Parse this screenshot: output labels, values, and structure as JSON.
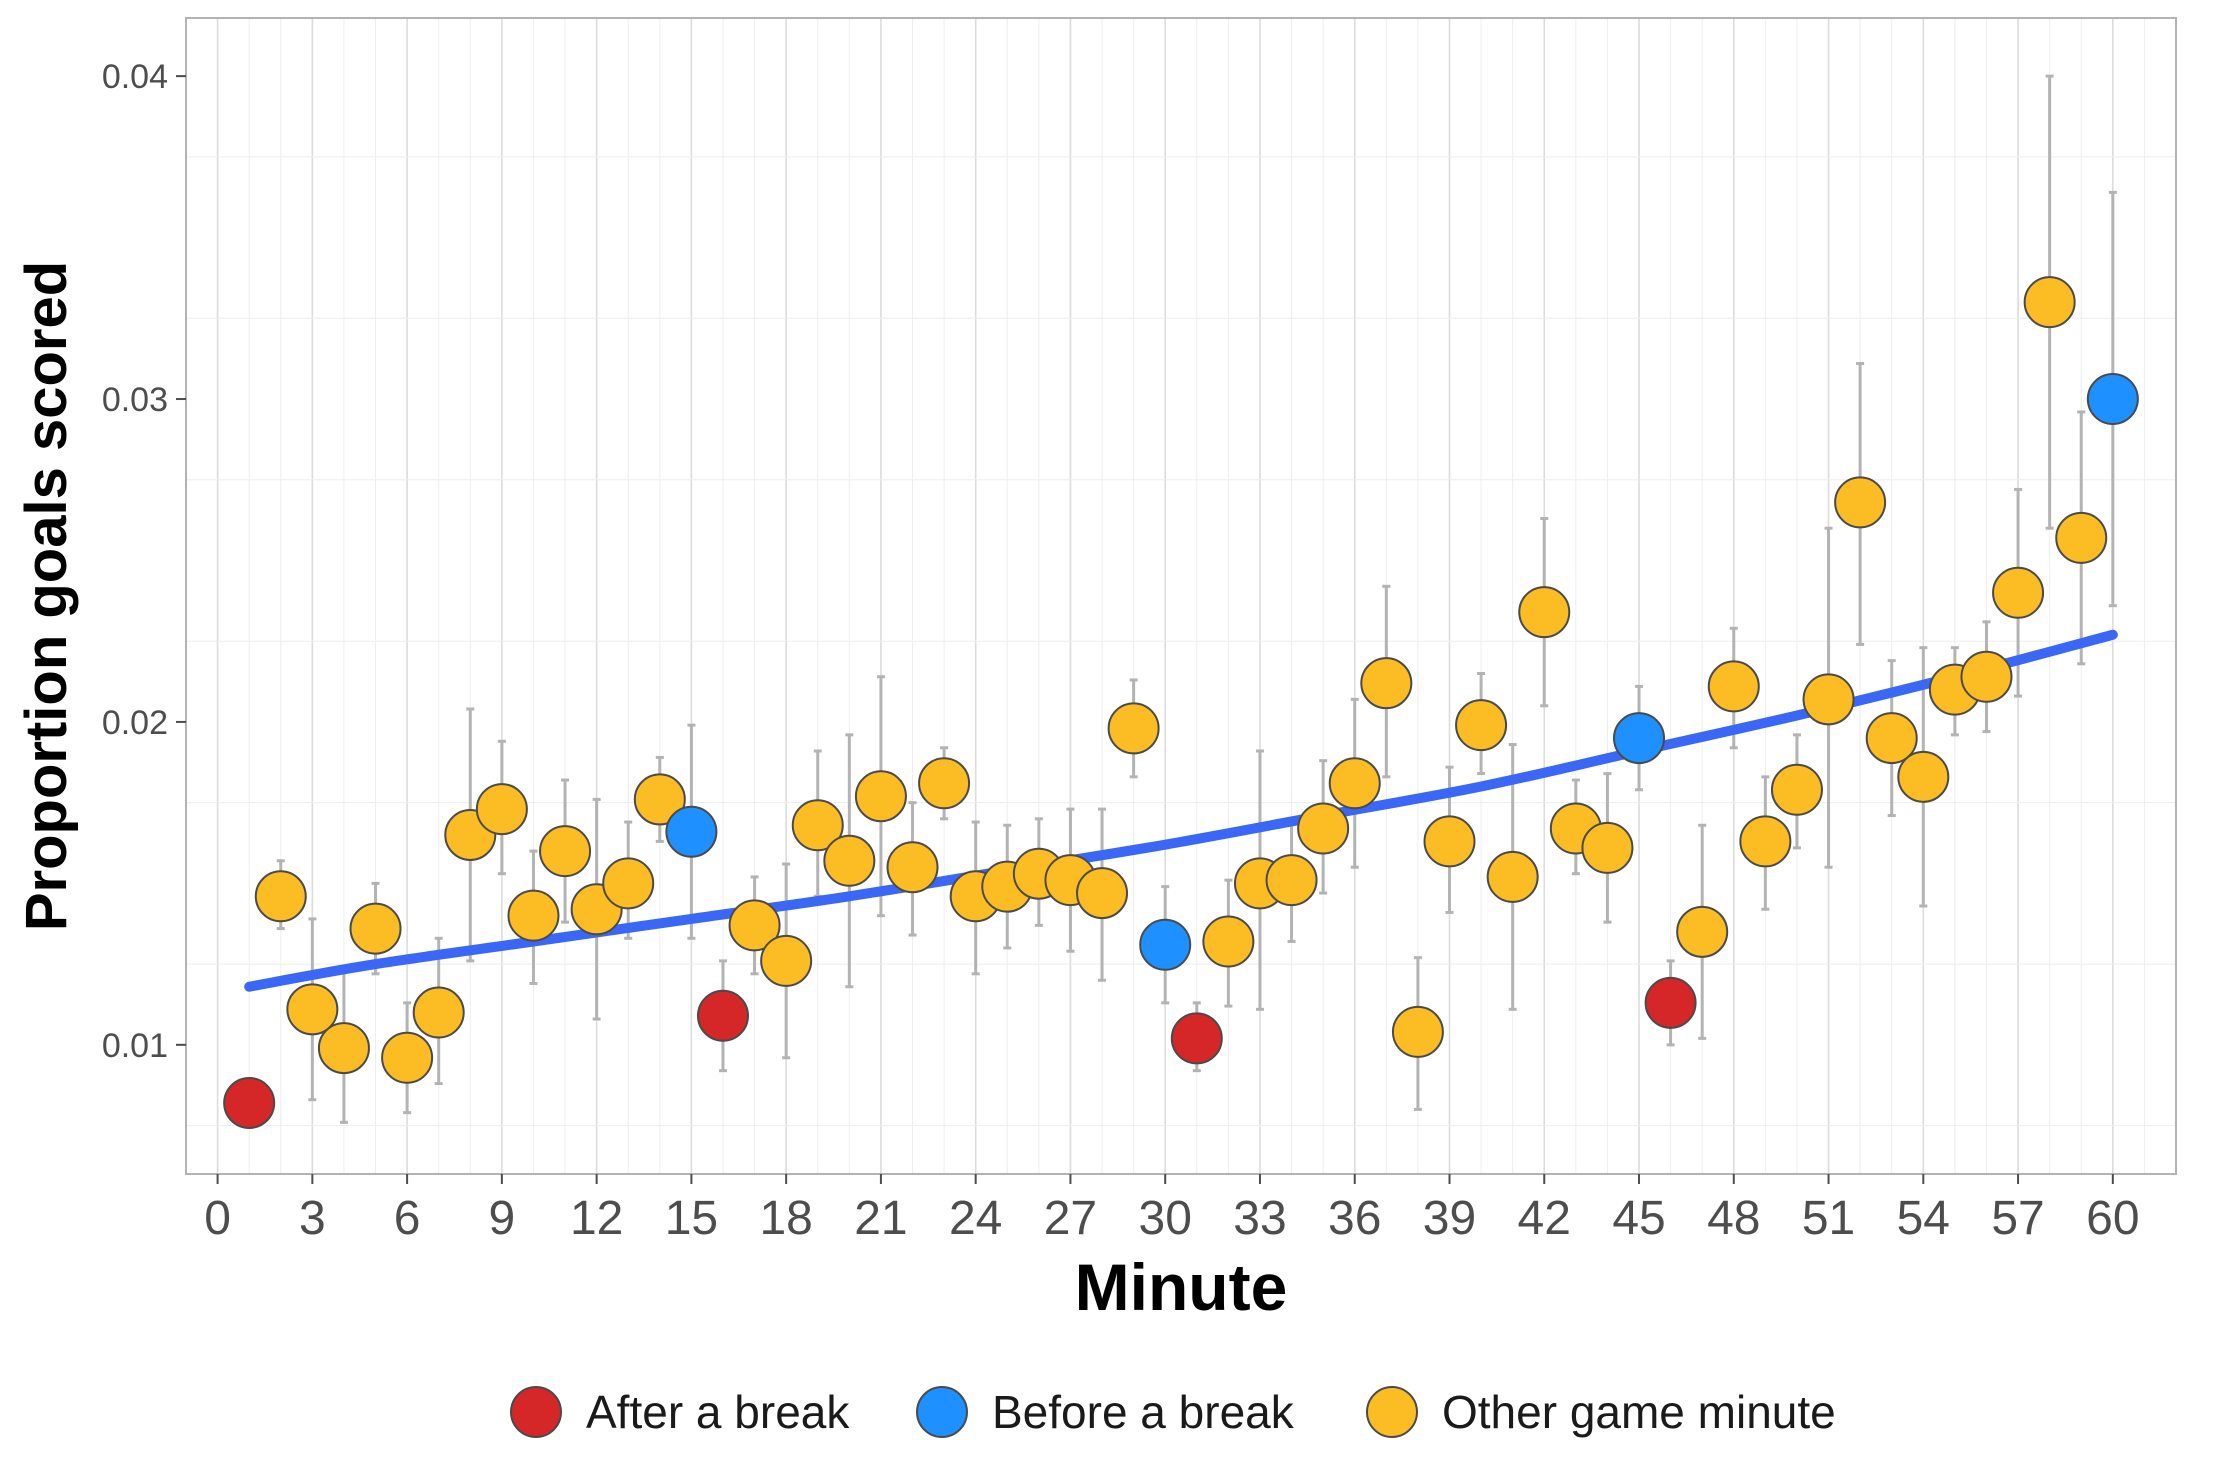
{
  "chart_data": {
    "type": "scatter",
    "xlabel": "Minute",
    "ylabel": "Proportion goals scored",
    "xlim": [
      -1,
      62
    ],
    "ylim": [
      0.006,
      0.0418
    ],
    "x_ticks": [
      0,
      3,
      6,
      9,
      12,
      15,
      18,
      21,
      24,
      27,
      30,
      33,
      36,
      39,
      42,
      45,
      48,
      51,
      54,
      57,
      60
    ],
    "y_ticks": [
      0.01,
      0.02,
      0.03,
      0.04
    ],
    "y_tick_labels": [
      "0.01",
      "0.02",
      "0.03",
      "0.04"
    ],
    "grid": true,
    "legend_position": "bottom",
    "colors": {
      "after": "#d62728",
      "before": "#1e90ff",
      "other": "#fbbd23",
      "trend": "#3a67f5",
      "errorbar": "#b3b3b3",
      "point_outline": "#4a4a4a"
    },
    "legend": [
      {
        "key": "after",
        "label": "After a break"
      },
      {
        "key": "before",
        "label": "Before a break"
      },
      {
        "key": "other",
        "label": "Other game minute"
      }
    ],
    "points": [
      {
        "x": 1,
        "y": 0.0082,
        "lo": null,
        "hi": null,
        "group": "after"
      },
      {
        "x": 2,
        "y": 0.0146,
        "lo": 0.0136,
        "hi": 0.0157,
        "group": "other"
      },
      {
        "x": 3,
        "y": 0.0111,
        "lo": 0.0083,
        "hi": 0.0139,
        "group": "other"
      },
      {
        "x": 4,
        "y": 0.0099,
        "lo": 0.0076,
        "hi": 0.0123,
        "group": "other"
      },
      {
        "x": 5,
        "y": 0.0136,
        "lo": 0.0122,
        "hi": 0.015,
        "group": "other"
      },
      {
        "x": 6,
        "y": 0.0096,
        "lo": 0.0079,
        "hi": 0.0113,
        "group": "other"
      },
      {
        "x": 7,
        "y": 0.011,
        "lo": 0.0088,
        "hi": 0.0133,
        "group": "other"
      },
      {
        "x": 8,
        "y": 0.0165,
        "lo": 0.0126,
        "hi": 0.0204,
        "group": "other"
      },
      {
        "x": 9,
        "y": 0.0173,
        "lo": 0.0153,
        "hi": 0.0194,
        "group": "other"
      },
      {
        "x": 10,
        "y": 0.014,
        "lo": 0.0119,
        "hi": 0.016,
        "group": "other"
      },
      {
        "x": 11,
        "y": 0.016,
        "lo": 0.0138,
        "hi": 0.0182,
        "group": "other"
      },
      {
        "x": 12,
        "y": 0.0142,
        "lo": 0.0108,
        "hi": 0.0176,
        "group": "other"
      },
      {
        "x": 13,
        "y": 0.015,
        "lo": 0.0133,
        "hi": 0.0169,
        "group": "other"
      },
      {
        "x": 14,
        "y": 0.0176,
        "lo": 0.0163,
        "hi": 0.0189,
        "group": "other"
      },
      {
        "x": 15,
        "y": 0.0166,
        "lo": 0.0133,
        "hi": 0.0199,
        "group": "before"
      },
      {
        "x": 16,
        "y": 0.0109,
        "lo": 0.0092,
        "hi": 0.0126,
        "group": "after"
      },
      {
        "x": 17,
        "y": 0.0137,
        "lo": 0.0122,
        "hi": 0.0152,
        "group": "other"
      },
      {
        "x": 18,
        "y": 0.0126,
        "lo": 0.0096,
        "hi": 0.0156,
        "group": "other"
      },
      {
        "x": 19,
        "y": 0.0168,
        "lo": 0.0146,
        "hi": 0.0191,
        "group": "other"
      },
      {
        "x": 20,
        "y": 0.0157,
        "lo": 0.0118,
        "hi": 0.0196,
        "group": "other"
      },
      {
        "x": 21,
        "y": 0.0177,
        "lo": 0.014,
        "hi": 0.0214,
        "group": "other"
      },
      {
        "x": 22,
        "y": 0.0155,
        "lo": 0.0134,
        "hi": 0.0175,
        "group": "other"
      },
      {
        "x": 23,
        "y": 0.0181,
        "lo": 0.017,
        "hi": 0.0192,
        "group": "other"
      },
      {
        "x": 24,
        "y": 0.0146,
        "lo": 0.0122,
        "hi": 0.0169,
        "group": "other"
      },
      {
        "x": 25,
        "y": 0.0149,
        "lo": 0.013,
        "hi": 0.0168,
        "group": "other"
      },
      {
        "x": 26,
        "y": 0.0153,
        "lo": 0.0137,
        "hi": 0.017,
        "group": "other"
      },
      {
        "x": 27,
        "y": 0.0151,
        "lo": 0.0129,
        "hi": 0.0173,
        "group": "other"
      },
      {
        "x": 28,
        "y": 0.0147,
        "lo": 0.012,
        "hi": 0.0173,
        "group": "other"
      },
      {
        "x": 29,
        "y": 0.0198,
        "lo": 0.0183,
        "hi": 0.0213,
        "group": "other"
      },
      {
        "x": 30,
        "y": 0.0131,
        "lo": 0.0113,
        "hi": 0.0149,
        "group": "before"
      },
      {
        "x": 31,
        "y": 0.0102,
        "lo": 0.0092,
        "hi": 0.0113,
        "group": "after"
      },
      {
        "x": 32,
        "y": 0.0132,
        "lo": 0.0112,
        "hi": 0.0151,
        "group": "other"
      },
      {
        "x": 33,
        "y": 0.015,
        "lo": 0.0111,
        "hi": 0.0191,
        "group": "other"
      },
      {
        "x": 34,
        "y": 0.0151,
        "lo": 0.0132,
        "hi": 0.017,
        "group": "other"
      },
      {
        "x": 35,
        "y": 0.0167,
        "lo": 0.0147,
        "hi": 0.0188,
        "group": "other"
      },
      {
        "x": 36,
        "y": 0.0181,
        "lo": 0.0155,
        "hi": 0.0207,
        "group": "other"
      },
      {
        "x": 37,
        "y": 0.0212,
        "lo": 0.0183,
        "hi": 0.0242,
        "group": "other"
      },
      {
        "x": 38,
        "y": 0.0104,
        "lo": 0.008,
        "hi": 0.0127,
        "group": "other"
      },
      {
        "x": 39,
        "y": 0.0163,
        "lo": 0.0141,
        "hi": 0.0186,
        "group": "other"
      },
      {
        "x": 40,
        "y": 0.0199,
        "lo": 0.0184,
        "hi": 0.0215,
        "group": "other"
      },
      {
        "x": 41,
        "y": 0.0152,
        "lo": 0.0111,
        "hi": 0.0193,
        "group": "other"
      },
      {
        "x": 42,
        "y": 0.0234,
        "lo": 0.0205,
        "hi": 0.0263,
        "group": "other"
      },
      {
        "x": 43,
        "y": 0.0167,
        "lo": 0.0153,
        "hi": 0.0182,
        "group": "other"
      },
      {
        "x": 44,
        "y": 0.0161,
        "lo": 0.0138,
        "hi": 0.0184,
        "group": "other"
      },
      {
        "x": 45,
        "y": 0.0195,
        "lo": 0.0179,
        "hi": 0.0211,
        "group": "before"
      },
      {
        "x": 46,
        "y": 0.0113,
        "lo": 0.01,
        "hi": 0.0126,
        "group": "after"
      },
      {
        "x": 47,
        "y": 0.0135,
        "lo": 0.0102,
        "hi": 0.0168,
        "group": "other"
      },
      {
        "x": 48,
        "y": 0.0211,
        "lo": 0.0192,
        "hi": 0.0229,
        "group": "other"
      },
      {
        "x": 49,
        "y": 0.0163,
        "lo": 0.0142,
        "hi": 0.0183,
        "group": "other"
      },
      {
        "x": 50,
        "y": 0.0179,
        "lo": 0.0161,
        "hi": 0.0196,
        "group": "other"
      },
      {
        "x": 51,
        "y": 0.0207,
        "lo": 0.0155,
        "hi": 0.026,
        "group": "other"
      },
      {
        "x": 52,
        "y": 0.0268,
        "lo": 0.0224,
        "hi": 0.0311,
        "group": "other"
      },
      {
        "x": 53,
        "y": 0.0195,
        "lo": 0.0171,
        "hi": 0.0219,
        "group": "other"
      },
      {
        "x": 54,
        "y": 0.0183,
        "lo": 0.0143,
        "hi": 0.0223,
        "group": "other"
      },
      {
        "x": 55,
        "y": 0.021,
        "lo": 0.0196,
        "hi": 0.0223,
        "group": "other"
      },
      {
        "x": 56,
        "y": 0.0214,
        "lo": 0.0197,
        "hi": 0.0231,
        "group": "other"
      },
      {
        "x": 57,
        "y": 0.024,
        "lo": 0.0208,
        "hi": 0.0272,
        "group": "other"
      },
      {
        "x": 58,
        "y": 0.033,
        "lo": 0.026,
        "hi": 0.04,
        "group": "other"
      },
      {
        "x": 59,
        "y": 0.0257,
        "lo": 0.0218,
        "hi": 0.0296,
        "group": "other"
      },
      {
        "x": 60,
        "y": 0.03,
        "lo": 0.0236,
        "hi": 0.0364,
        "group": "before"
      }
    ],
    "trend": {
      "x": [
        1,
        5,
        10,
        15,
        20,
        25,
        30,
        35,
        40,
        45,
        50,
        55,
        60
      ],
      "y": [
        0.0118,
        0.0125,
        0.0132,
        0.0139,
        0.0146,
        0.0154,
        0.0162,
        0.0171,
        0.018,
        0.0191,
        0.0202,
        0.0214,
        0.0227
      ]
    }
  }
}
